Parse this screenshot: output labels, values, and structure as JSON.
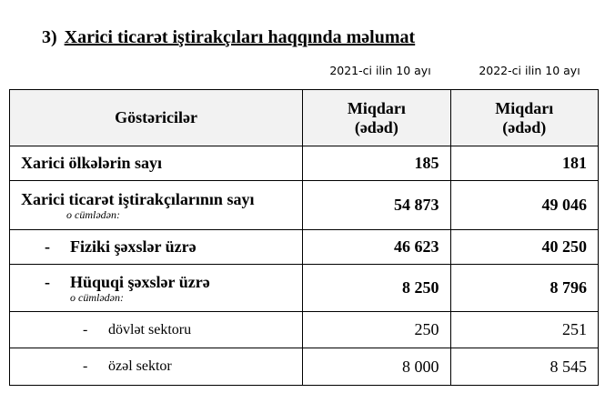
{
  "title": {
    "number": "3)",
    "text": "Xarici ticarət iştirakçıları haqqında məlumat"
  },
  "periods": [
    "2021-ci ilin 10 ayı",
    "2022-ci ilin 10 ayı"
  ],
  "table": {
    "headers": [
      "Göstəricilər",
      "Miqdarı",
      "(ədəd)"
    ],
    "rows": [
      {
        "label": "Xarici ölkələrin sayı",
        "v1": "185",
        "v2": "181"
      },
      {
        "label": "Xarici ticarət iştirakçılarının sayı",
        "sub": "o cümlədən:",
        "v1": "54 873",
        "v2": "49 046"
      },
      {
        "dash": "-",
        "label": "Fiziki şəxslər üzrə",
        "v1": "46 623",
        "v2": "40 250"
      },
      {
        "dash": "-",
        "label": "Hüquqi şəxslər üzrə",
        "sub": "o cümlədən:",
        "v1": "8 250",
        "v2": "8 796"
      },
      {
        "dash": "-",
        "label": "dövlət sektoru",
        "v1": "250",
        "v2": "251"
      },
      {
        "dash": "-",
        "label": "özəl sektor",
        "v1": "8 000",
        "v2": "8 545"
      }
    ]
  }
}
